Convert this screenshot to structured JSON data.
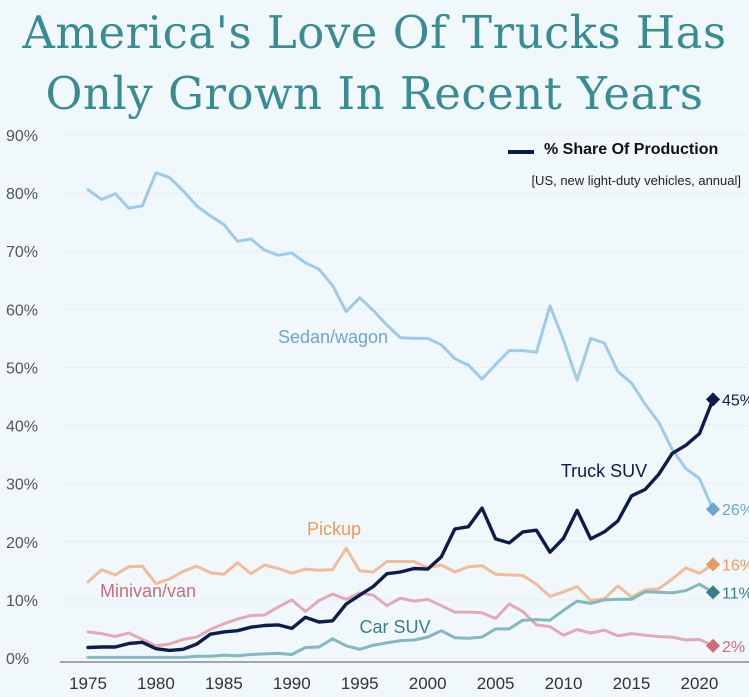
{
  "title_line1": "America's Love Of Trucks Has",
  "title_line2": "Only Grown In Recent Years",
  "legend": {
    "label": "% Share Of Production",
    "subtitle": "[US, new light-duty vehicles, annual]"
  },
  "chart_data": {
    "type": "line",
    "title": "America's Love Of Trucks Has Only Grown In Recent Years",
    "ylim": [
      0,
      90
    ],
    "xlim": [
      1975,
      2021
    ],
    "y_ticks": [
      "0%",
      "10%",
      "20%",
      "30%",
      "40%",
      "50%",
      "60%",
      "70%",
      "80%",
      "90%"
    ],
    "x_ticks": [
      "1975",
      "1980",
      "1985",
      "1990",
      "1995",
      "2000",
      "2005",
      "2010",
      "2015",
      "2020"
    ],
    "x": [
      1975,
      1976,
      1977,
      1978,
      1979,
      1980,
      1981,
      1982,
      1983,
      1984,
      1985,
      1986,
      1987,
      1988,
      1989,
      1990,
      1991,
      1992,
      1993,
      1994,
      1995,
      1996,
      1997,
      1998,
      1999,
      2000,
      2001,
      2002,
      2003,
      2004,
      2005,
      2006,
      2007,
      2008,
      2009,
      2010,
      2011,
      2012,
      2013,
      2014,
      2015,
      2016,
      2017,
      2018,
      2019,
      2020,
      2021
    ],
    "series": [
      {
        "name": "Sedan/wagon",
        "color": "#9fcbe8",
        "end_label": "26%",
        "label_color": "#6fa4cf",
        "values": [
          80.6,
          78.9,
          79.9,
          77.4,
          77.8,
          83.5,
          82.7,
          80.4,
          77.8,
          76.1,
          74.6,
          71.7,
          72.1,
          70.2,
          69.3,
          69.7,
          68.0,
          66.9,
          64.1,
          59.6,
          62.0,
          59.8,
          57.3,
          55.1,
          55.0,
          55.0,
          53.9,
          51.5,
          50.4,
          48.0,
          50.5,
          52.9,
          52.9,
          52.6,
          60.6,
          54.7,
          47.8,
          55.0,
          54.2,
          49.3,
          47.3,
          43.7,
          40.6,
          35.9,
          32.6,
          30.9,
          25.6
        ]
      },
      {
        "name": "Truck SUV",
        "color": "#0d1c4a",
        "end_label": "45%",
        "label_color": "#0d1c4a",
        "values": [
          1.8,
          1.9,
          1.9,
          2.5,
          2.7,
          1.6,
          1.3,
          1.5,
          2.4,
          4.1,
          4.5,
          4.7,
          5.3,
          5.6,
          5.7,
          5.1,
          7.0,
          6.2,
          6.4,
          9.3,
          10.8,
          12.3,
          14.5,
          14.8,
          15.4,
          15.3,
          17.4,
          22.2,
          22.6,
          25.8,
          20.5,
          19.8,
          21.7,
          22.0,
          18.2,
          20.6,
          25.4,
          20.5,
          21.7,
          23.6,
          27.9,
          29.0,
          31.6,
          35.2,
          36.6,
          38.6,
          44.5
        ]
      },
      {
        "name": "Pickup",
        "color": "#f1bc9b",
        "end_label": "16%",
        "label_color": "#e89a62",
        "values": [
          13.1,
          15.2,
          14.3,
          15.7,
          15.8,
          12.8,
          13.6,
          14.9,
          15.8,
          14.7,
          14.4,
          16.4,
          14.5,
          16.0,
          15.4,
          14.6,
          15.3,
          15.1,
          15.2,
          18.9,
          15.0,
          14.8,
          16.6,
          16.6,
          16.6,
          15.5,
          16.0,
          14.8,
          15.7,
          15.9,
          14.4,
          14.3,
          14.2,
          12.7,
          10.6,
          11.4,
          12.3,
          9.9,
          10.2,
          12.4,
          10.5,
          11.7,
          11.9,
          13.6,
          15.5,
          14.6,
          16.1
        ]
      },
      {
        "name": "Minivan/van",
        "color": "#e3aab5",
        "end_label": "2%",
        "label_color": "#c96e7c",
        "values": [
          4.5,
          4.2,
          3.7,
          4.3,
          3.2,
          2.1,
          2.4,
          3.2,
          3.6,
          4.9,
          5.9,
          6.7,
          7.3,
          7.4,
          8.8,
          10.0,
          8.0,
          9.9,
          11.0,
          10.1,
          11.2,
          10.8,
          9.0,
          10.3,
          9.8,
          10.1,
          9.0,
          7.9,
          7.9,
          7.8,
          6.8,
          9.3,
          8.0,
          5.7,
          5.4,
          3.9,
          4.9,
          4.3,
          4.8,
          3.8,
          4.2,
          3.9,
          3.7,
          3.6,
          3.1,
          3.2,
          2.1
        ]
      },
      {
        "name": "Car SUV",
        "color": "#82b8bf",
        "end_label": "11%",
        "label_color": "#3a7f8a",
        "values": [
          0.1,
          0.1,
          0.1,
          0.1,
          0.1,
          0.1,
          0.1,
          0.1,
          0.3,
          0.3,
          0.5,
          0.4,
          0.6,
          0.7,
          0.8,
          0.6,
          1.8,
          1.9,
          3.3,
          2.1,
          1.5,
          2.2,
          2.6,
          3.0,
          3.1,
          3.6,
          4.7,
          3.5,
          3.4,
          3.6,
          5.0,
          5.0,
          6.5,
          6.6,
          6.5,
          8.2,
          9.8,
          9.4,
          10.0,
          10.1,
          10.1,
          11.4,
          11.3,
          11.2,
          11.6,
          12.7,
          11.3
        ]
      }
    ]
  }
}
